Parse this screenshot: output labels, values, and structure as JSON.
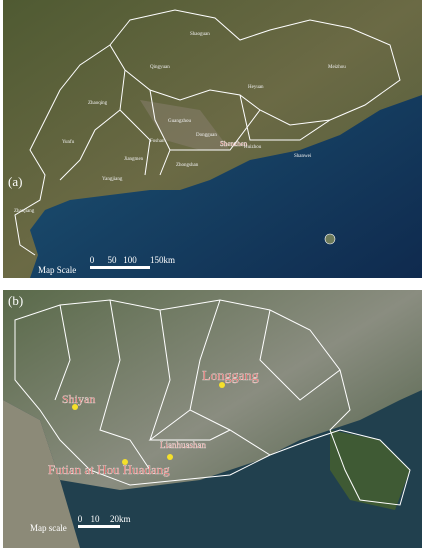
{
  "panel_a": {
    "label": "(a)",
    "place_names": [
      "Shaoguan",
      "Qingyuan",
      "Meizhou",
      "Heyuan",
      "Zhaoqing",
      "Guangzhou",
      "Yunfu",
      "Foshan",
      "Dongguan",
      "Huizhou",
      "Shanwei",
      "Jiangmen",
      "Zhongshan",
      "Shenzhen",
      "Yangjiang",
      "Zhanjiang"
    ],
    "scale": {
      "title": "Map Scale",
      "ticks": [
        "0",
        "50",
        "100",
        "150km"
      ]
    }
  },
  "panel_b": {
    "label": "(b)",
    "sites": [
      "Shiyan",
      "Longgang",
      "Lianhuashan",
      "Futian at Hou Huadang"
    ],
    "scale": {
      "title": "Map scale",
      "ticks": [
        "0",
        "10",
        "20km"
      ]
    }
  }
}
